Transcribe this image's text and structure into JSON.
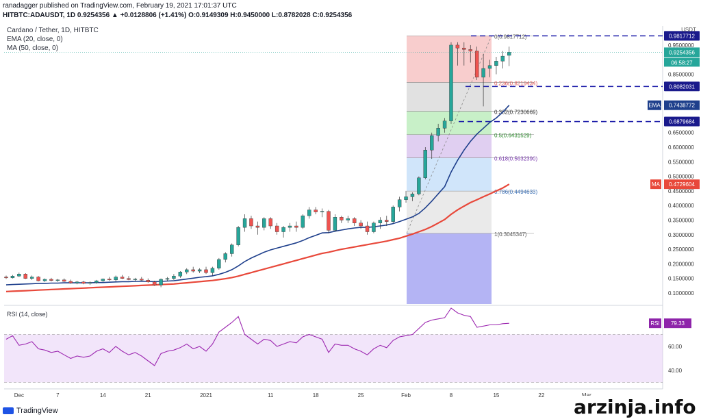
{
  "header": {
    "line1": "ranadagger published on TradingView.com, February 19, 2021 17:01:37 UTC",
    "line2": "HITBTC:ADAUSDT, 1D  0.9254356  ▲ +0.0128806 (+1.41%) O:0.9149309 H:0.9450000 L:0.8782028 C:0.9254356"
  },
  "legend": {
    "title": "Cardano / Tether, 1D, HITBTC",
    "ema": "EMA (20, close, 0)",
    "ma": "MA (50, close, 0)"
  },
  "brand": "TradingView",
  "watermark": "arzinja.info",
  "colors": {
    "up": "#26a69a",
    "down": "#ef5350",
    "ema": "#1e3f8c",
    "ma": "#e8483a",
    "rsi": "#9c27b0",
    "dashed": "#1a1aa8",
    "background": "#ffffff"
  },
  "chart_data": {
    "type": "candlestick",
    "currency": "USDT",
    "price_labels": [
      "0.1000000",
      "0.1500000",
      "0.2000000",
      "0.2500000",
      "0.3000000",
      "0.3500000",
      "0.4000000",
      "0.4500000",
      "0.5000000",
      "0.5500000",
      "0.6000000",
      "0.6500000",
      "0.8500000",
      "0.9500000"
    ],
    "price_ticks": [
      0.1,
      0.15,
      0.2,
      0.25,
      0.3,
      0.35,
      0.4,
      0.45,
      0.5,
      0.55,
      0.6,
      0.65,
      0.85,
      0.95
    ],
    "x_tick_labels": [
      "Dec",
      "7",
      "14",
      "21",
      "2021",
      "11",
      "18",
      "25",
      "Feb",
      "8",
      "15",
      "22",
      "Mar"
    ],
    "x_tick_index": [
      2,
      8,
      15,
      22,
      31,
      41,
      48,
      55,
      62,
      69,
      76,
      83,
      90
    ],
    "last_price_label": "0.9254356",
    "countdown_label": "06:58:27",
    "ema_label": "EMA",
    "ema_value_label": "0.7438772",
    "ma_label": "MA",
    "ma_value_label": "0.4729604",
    "horizontal_levels": [
      {
        "label": "0.9817712",
        "value": 0.9817712
      },
      {
        "label": "0.8082031",
        "value": 0.8082031
      },
      {
        "label": "0.6879684",
        "value": 0.6879684
      }
    ],
    "fib_levels": [
      {
        "label": "0(0.9817712)",
        "value": 0.9817712,
        "color": "#f2a4a4"
      },
      {
        "label": "0.236(0.8219434)",
        "value": 0.8219434,
        "color": "#c8c8c8"
      },
      {
        "label": "0.382(0.7230669)",
        "value": 0.7230669,
        "color": "#9be39b"
      },
      {
        "label": "0.5(0.6431529)",
        "value": 0.6431529,
        "color": "#c6a8e6"
      },
      {
        "label": "0.618(0.5632390)",
        "value": 0.563239,
        "color": "#a9d0f5"
      },
      {
        "label": "0.786(0.4494633)",
        "value": 0.4494633,
        "color": "#d9d9d9"
      },
      {
        "label": "1(0.3045347)",
        "value": 0.3045347,
        "color": "#9b9bf0"
      }
    ],
    "candles": [
      [
        0.155,
        0.16,
        0.148,
        0.152
      ],
      [
        0.152,
        0.162,
        0.15,
        0.158
      ],
      [
        0.158,
        0.17,
        0.155,
        0.165
      ],
      [
        0.165,
        0.168,
        0.148,
        0.15
      ],
      [
        0.15,
        0.16,
        0.145,
        0.155
      ],
      [
        0.155,
        0.158,
        0.14,
        0.142
      ],
      [
        0.142,
        0.15,
        0.138,
        0.147
      ],
      [
        0.147,
        0.152,
        0.14,
        0.143
      ],
      [
        0.143,
        0.148,
        0.138,
        0.145
      ],
      [
        0.145,
        0.15,
        0.138,
        0.14
      ],
      [
        0.14,
        0.146,
        0.132,
        0.135
      ],
      [
        0.135,
        0.142,
        0.13,
        0.138
      ],
      [
        0.138,
        0.142,
        0.13,
        0.133
      ],
      [
        0.133,
        0.14,
        0.128,
        0.136
      ],
      [
        0.136,
        0.145,
        0.132,
        0.142
      ],
      [
        0.142,
        0.15,
        0.138,
        0.148
      ],
      [
        0.148,
        0.155,
        0.142,
        0.145
      ],
      [
        0.145,
        0.16,
        0.14,
        0.155
      ],
      [
        0.155,
        0.162,
        0.148,
        0.15
      ],
      [
        0.15,
        0.158,
        0.144,
        0.146
      ],
      [
        0.146,
        0.152,
        0.14,
        0.148
      ],
      [
        0.148,
        0.155,
        0.142,
        0.144
      ],
      [
        0.144,
        0.15,
        0.135,
        0.138
      ],
      [
        0.138,
        0.142,
        0.125,
        0.128
      ],
      [
        0.128,
        0.15,
        0.12,
        0.147
      ],
      [
        0.147,
        0.155,
        0.14,
        0.15
      ],
      [
        0.15,
        0.165,
        0.145,
        0.158
      ],
      [
        0.158,
        0.175,
        0.152,
        0.172
      ],
      [
        0.172,
        0.185,
        0.165,
        0.18
      ],
      [
        0.18,
        0.19,
        0.17,
        0.175
      ],
      [
        0.175,
        0.185,
        0.168,
        0.18
      ],
      [
        0.18,
        0.19,
        0.165,
        0.17
      ],
      [
        0.17,
        0.19,
        0.16,
        0.185
      ],
      [
        0.185,
        0.22,
        0.18,
        0.215
      ],
      [
        0.215,
        0.24,
        0.205,
        0.235
      ],
      [
        0.235,
        0.27,
        0.225,
        0.265
      ],
      [
        0.265,
        0.33,
        0.26,
        0.325
      ],
      [
        0.325,
        0.37,
        0.31,
        0.355
      ],
      [
        0.355,
        0.365,
        0.32,
        0.33
      ],
      [
        0.33,
        0.345,
        0.3,
        0.325
      ],
      [
        0.325,
        0.36,
        0.315,
        0.355
      ],
      [
        0.355,
        0.36,
        0.32,
        0.33
      ],
      [
        0.33,
        0.34,
        0.3,
        0.31
      ],
      [
        0.31,
        0.33,
        0.29,
        0.325
      ],
      [
        0.325,
        0.34,
        0.31,
        0.33
      ],
      [
        0.33,
        0.345,
        0.31,
        0.325
      ],
      [
        0.325,
        0.37,
        0.32,
        0.365
      ],
      [
        0.365,
        0.395,
        0.355,
        0.385
      ],
      [
        0.385,
        0.395,
        0.37,
        0.378
      ],
      [
        0.378,
        0.39,
        0.36,
        0.38
      ],
      [
        0.38,
        0.385,
        0.305,
        0.315
      ],
      [
        0.315,
        0.37,
        0.31,
        0.36
      ],
      [
        0.36,
        0.365,
        0.34,
        0.35
      ],
      [
        0.35,
        0.365,
        0.34,
        0.355
      ],
      [
        0.355,
        0.36,
        0.33,
        0.34
      ],
      [
        0.34,
        0.35,
        0.32,
        0.33
      ],
      [
        0.33,
        0.345,
        0.3,
        0.31
      ],
      [
        0.31,
        0.345,
        0.305,
        0.34
      ],
      [
        0.34,
        0.36,
        0.32,
        0.35
      ],
      [
        0.35,
        0.365,
        0.33,
        0.345
      ],
      [
        0.345,
        0.4,
        0.34,
        0.395
      ],
      [
        0.395,
        0.43,
        0.38,
        0.42
      ],
      [
        0.42,
        0.45,
        0.41,
        0.43
      ],
      [
        0.43,
        0.445,
        0.415,
        0.44
      ],
      [
        0.44,
        0.5,
        0.435,
        0.495
      ],
      [
        0.495,
        0.6,
        0.49,
        0.59
      ],
      [
        0.59,
        0.65,
        0.56,
        0.64
      ],
      [
        0.64,
        0.68,
        0.62,
        0.665
      ],
      [
        0.665,
        0.7,
        0.65,
        0.69
      ],
      [
        0.69,
        0.96,
        0.68,
        0.95
      ],
      [
        0.95,
        0.96,
        0.88,
        0.94
      ],
      [
        0.94,
        0.96,
        0.88,
        0.935
      ],
      [
        0.935,
        0.95,
        0.89,
        0.93
      ],
      [
        0.93,
        0.945,
        0.83,
        0.84
      ],
      [
        0.84,
        0.92,
        0.74,
        0.87
      ],
      [
        0.87,
        0.9,
        0.84,
        0.88
      ],
      [
        0.88,
        0.91,
        0.85,
        0.895
      ],
      [
        0.895,
        0.93,
        0.87,
        0.912
      ],
      [
        0.9149309,
        0.945,
        0.8782028,
        0.9254356
      ]
    ],
    "ema20": [
      0.128,
      0.129,
      0.13,
      0.131,
      0.132,
      0.133,
      0.133,
      0.134,
      0.134,
      0.135,
      0.135,
      0.135,
      0.135,
      0.135,
      0.136,
      0.136,
      0.137,
      0.138,
      0.139,
      0.139,
      0.14,
      0.14,
      0.14,
      0.139,
      0.14,
      0.141,
      0.142,
      0.145,
      0.148,
      0.151,
      0.154,
      0.156,
      0.159,
      0.164,
      0.171,
      0.18,
      0.193,
      0.208,
      0.22,
      0.23,
      0.24,
      0.248,
      0.254,
      0.26,
      0.266,
      0.272,
      0.28,
      0.29,
      0.298,
      0.306,
      0.307,
      0.312,
      0.316,
      0.32,
      0.323,
      0.325,
      0.325,
      0.327,
      0.33,
      0.333,
      0.338,
      0.345,
      0.353,
      0.361,
      0.373,
      0.392,
      0.415,
      0.44,
      0.465,
      0.515,
      0.555,
      0.59,
      0.62,
      0.645,
      0.665,
      0.685,
      0.7,
      0.72,
      0.744
    ],
    "ma50": [
      0.105,
      0.106,
      0.107,
      0.108,
      0.109,
      0.11,
      0.111,
      0.112,
      0.113,
      0.114,
      0.115,
      0.116,
      0.117,
      0.118,
      0.119,
      0.12,
      0.121,
      0.122,
      0.123,
      0.124,
      0.125,
      0.126,
      0.127,
      0.128,
      0.129,
      0.13,
      0.131,
      0.133,
      0.135,
      0.137,
      0.139,
      0.141,
      0.143,
      0.146,
      0.149,
      0.153,
      0.158,
      0.164,
      0.17,
      0.176,
      0.182,
      0.188,
      0.194,
      0.2,
      0.206,
      0.212,
      0.218,
      0.224,
      0.23,
      0.236,
      0.24,
      0.245,
      0.25,
      0.254,
      0.258,
      0.262,
      0.266,
      0.27,
      0.274,
      0.278,
      0.283,
      0.288,
      0.295,
      0.302,
      0.31,
      0.318,
      0.328,
      0.34,
      0.352,
      0.37,
      0.385,
      0.398,
      0.41,
      0.42,
      0.43,
      0.44,
      0.45,
      0.46,
      0.4729604
    ],
    "rsi": {
      "title": "RSI (14, close)",
      "label": "RSI",
      "value_label": "79.33",
      "ticks": [
        40,
        60
      ],
      "tick_labels": [
        "40.00",
        "60.00"
      ],
      "band": [
        30,
        70
      ],
      "values": [
        66,
        69,
        61,
        62,
        64,
        58,
        57,
        55,
        56,
        53,
        50,
        52,
        51,
        52,
        56,
        58,
        55,
        60,
        56,
        53,
        55,
        52,
        48,
        44,
        54,
        56,
        57,
        59,
        62,
        58,
        60,
        56,
        62,
        72,
        76,
        80,
        85,
        70,
        66,
        62,
        66,
        65,
        60,
        62,
        64,
        63,
        68,
        70,
        68,
        66,
        55,
        62,
        61,
        61,
        58,
        56,
        53,
        58,
        61,
        59,
        65,
        68,
        69,
        70,
        75,
        80,
        82,
        83,
        84,
        92,
        88,
        86,
        85,
        76,
        77,
        78,
        78,
        79,
        79.33
      ]
    }
  }
}
